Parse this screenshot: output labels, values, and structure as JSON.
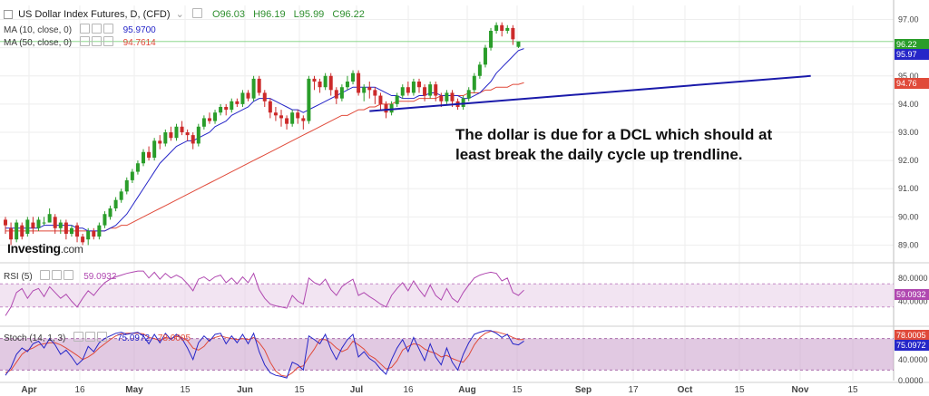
{
  "chart_title": "US Dollar Index Futures, D, (CFD)",
  "ohlc": {
    "O": "O96.03",
    "H": "H96.19",
    "L": "L95.99",
    "C": "C96.22"
  },
  "ma10": {
    "label": "MA (10, close, 0)",
    "value": "95.9700"
  },
  "ma50": {
    "label": "MA (50, close, 0)",
    "value": "94.7614"
  },
  "rsi": {
    "label": "RSI (5)",
    "value": "59.0932"
  },
  "stoch": {
    "label": "Stoch (14, 1, 3)",
    "k": "75.0972",
    "d": "78.0005"
  },
  "annotation": [
    "The dollar is due for a DCL which should at",
    "least break the daily cycle up trendline."
  ],
  "logo": {
    "brand": "Investing",
    "suffix": ".com"
  },
  "price_tags": {
    "close": "96.22",
    "ma10": "95.97",
    "ma50": "94.76"
  },
  "rsi_tag": "59.0932",
  "stoch_tags": {
    "d": "78.0005",
    "k": "75.0972"
  },
  "colors": {
    "up": "#2a9d2a",
    "down": "#cc2a2a",
    "ma10": "#2626c8",
    "ma50": "#e04a3a",
    "rsi": "#b048b0",
    "band": "#e9d2ea",
    "trendline": "#1a1aaa"
  },
  "chart_data": {
    "type": "candlestick",
    "x_ticks": [
      "Apr",
      "16",
      "May",
      "15",
      "Jun",
      "15",
      "Jul",
      "16",
      "Aug",
      "15",
      "Sep",
      "17",
      "Oct",
      "15",
      "Nov",
      "15"
    ],
    "y_ticks": [
      "97.00",
      "96.00",
      "95.00",
      "94.00",
      "93.00",
      "92.00",
      "91.00",
      "90.00",
      "89.00"
    ],
    "y_range": [
      88.5,
      97.5
    ],
    "candles": [
      [
        89.9,
        89.7,
        90.0,
        89.4
      ],
      [
        89.6,
        89.2,
        89.8,
        89.0
      ],
      [
        89.2,
        89.8,
        89.9,
        89.1
      ],
      [
        89.7,
        89.3,
        89.8,
        89.2
      ],
      [
        89.4,
        89.9,
        90.0,
        89.3
      ],
      [
        89.8,
        89.6,
        90.0,
        89.4
      ],
      [
        89.6,
        89.9,
        90.0,
        89.5
      ],
      [
        89.8,
        89.8,
        90.0,
        89.7
      ],
      [
        89.8,
        90.1,
        90.3,
        89.8
      ],
      [
        90.0,
        89.6,
        90.1,
        89.4
      ],
      [
        89.6,
        89.8,
        89.9,
        89.4
      ],
      [
        89.8,
        89.4,
        89.9,
        89.2
      ],
      [
        89.4,
        89.6,
        89.7,
        89.3
      ],
      [
        89.7,
        89.3,
        89.8,
        89.1
      ],
      [
        89.3,
        89.1,
        89.4,
        89.0
      ],
      [
        89.2,
        89.5,
        89.6,
        89.0
      ],
      [
        89.5,
        89.3,
        89.6,
        89.2
      ],
      [
        89.3,
        89.7,
        89.8,
        89.2
      ],
      [
        89.7,
        90.1,
        90.2,
        89.6
      ],
      [
        90.0,
        90.3,
        90.4,
        89.9
      ],
      [
        90.3,
        90.6,
        90.7,
        90.2
      ],
      [
        90.6,
        90.9,
        91.0,
        90.5
      ],
      [
        90.9,
        91.3,
        91.4,
        90.8
      ],
      [
        91.3,
        91.6,
        91.7,
        91.2
      ],
      [
        91.6,
        91.9,
        92.0,
        91.5
      ],
      [
        91.9,
        92.3,
        92.4,
        91.8
      ],
      [
        92.3,
        92.1,
        92.5,
        92.0
      ],
      [
        92.1,
        92.7,
        92.8,
        92.0
      ],
      [
        92.7,
        92.6,
        92.9,
        92.4
      ],
      [
        92.6,
        93.0,
        93.1,
        92.5
      ],
      [
        93.0,
        92.8,
        93.2,
        92.7
      ],
      [
        92.8,
        93.2,
        93.3,
        92.7
      ],
      [
        93.2,
        93.0,
        93.4,
        92.9
      ],
      [
        93.0,
        92.9,
        93.1,
        92.7
      ],
      [
        92.9,
        92.6,
        93.0,
        92.4
      ],
      [
        92.6,
        93.2,
        93.3,
        92.5
      ],
      [
        93.2,
        93.5,
        93.6,
        93.1
      ],
      [
        93.5,
        93.4,
        93.7,
        93.3
      ],
      [
        93.4,
        93.7,
        93.8,
        93.3
      ],
      [
        93.7,
        93.9,
        94.0,
        93.6
      ],
      [
        93.9,
        93.8,
        94.0,
        93.6
      ],
      [
        93.8,
        94.1,
        94.2,
        93.7
      ],
      [
        94.1,
        94.0,
        94.2,
        93.9
      ],
      [
        94.0,
        94.4,
        94.5,
        93.9
      ],
      [
        94.4,
        94.2,
        94.5,
        94.1
      ],
      [
        94.2,
        94.9,
        95.0,
        94.1
      ],
      [
        94.9,
        94.4,
        95.0,
        94.3
      ],
      [
        94.4,
        94.1,
        94.5,
        93.9
      ],
      [
        94.1,
        93.7,
        94.2,
        93.5
      ],
      [
        93.7,
        93.6,
        93.9,
        93.4
      ],
      [
        93.6,
        93.5,
        93.8,
        93.2
      ],
      [
        93.5,
        93.3,
        93.6,
        93.1
      ],
      [
        93.3,
        93.7,
        93.8,
        93.2
      ],
      [
        93.7,
        93.5,
        93.8,
        93.3
      ],
      [
        93.5,
        93.4,
        93.6,
        93.1
      ],
      [
        93.4,
        94.9,
        95.0,
        93.3
      ],
      [
        94.9,
        94.8,
        95.0,
        94.5
      ],
      [
        94.8,
        94.6,
        94.9,
        94.4
      ],
      [
        94.6,
        95.0,
        95.1,
        94.5
      ],
      [
        95.0,
        94.5,
        95.1,
        94.3
      ],
      [
        94.5,
        94.2,
        94.6,
        94.0
      ],
      [
        94.2,
        94.6,
        94.7,
        94.1
      ],
      [
        94.6,
        94.8,
        95.0,
        94.5
      ],
      [
        94.8,
        95.1,
        95.2,
        94.7
      ],
      [
        95.1,
        94.4,
        95.2,
        94.3
      ],
      [
        94.4,
        94.6,
        94.7,
        94.1
      ],
      [
        94.6,
        94.5,
        94.8,
        94.2
      ],
      [
        94.5,
        94.3,
        94.6,
        94.0
      ],
      [
        94.3,
        94.0,
        94.4,
        93.8
      ],
      [
        94.0,
        93.7,
        94.1,
        93.5
      ],
      [
        93.7,
        94.0,
        94.1,
        93.6
      ],
      [
        94.0,
        94.3,
        94.4,
        93.9
      ],
      [
        94.3,
        94.6,
        94.7,
        94.2
      ],
      [
        94.6,
        94.4,
        94.8,
        94.3
      ],
      [
        94.4,
        94.8,
        94.9,
        94.3
      ],
      [
        94.8,
        94.6,
        94.9,
        94.4
      ],
      [
        94.6,
        94.3,
        94.7,
        94.1
      ],
      [
        94.3,
        94.7,
        94.8,
        94.2
      ],
      [
        94.7,
        94.3,
        94.8,
        94.1
      ],
      [
        94.3,
        94.1,
        94.4,
        93.9
      ],
      [
        94.1,
        94.4,
        94.5,
        94.0
      ],
      [
        94.4,
        94.1,
        94.5,
        93.9
      ],
      [
        94.1,
        93.9,
        94.2,
        93.8
      ],
      [
        93.9,
        94.2,
        94.3,
        93.8
      ],
      [
        94.2,
        94.5,
        94.6,
        94.1
      ],
      [
        94.5,
        95.0,
        95.1,
        94.4
      ],
      [
        95.0,
        95.4,
        95.5,
        94.9
      ],
      [
        95.4,
        96.0,
        96.1,
        95.3
      ],
      [
        96.0,
        96.6,
        96.7,
        95.9
      ],
      [
        96.6,
        96.8,
        96.9,
        96.5
      ],
      [
        96.8,
        96.6,
        96.9,
        96.4
      ],
      [
        96.6,
        96.7,
        96.8,
        96.5
      ],
      [
        96.7,
        96.3,
        96.8,
        96.1
      ],
      [
        96.03,
        96.22,
        96.19,
        95.99
      ]
    ],
    "ma10": [
      89.6,
      89.6,
      89.6,
      89.6,
      89.6,
      89.6,
      89.6,
      89.7,
      89.7,
      89.7,
      89.7,
      89.7,
      89.7,
      89.6,
      89.6,
      89.5,
      89.5,
      89.5,
      89.5,
      89.6,
      89.7,
      89.9,
      90.1,
      90.4,
      90.7,
      91.0,
      91.3,
      91.6,
      91.9,
      92.1,
      92.3,
      92.5,
      92.6,
      92.7,
      92.7,
      92.8,
      92.9,
      93.0,
      93.2,
      93.3,
      93.4,
      93.6,
      93.7,
      93.8,
      93.9,
      94.1,
      94.2,
      94.2,
      94.2,
      94.1,
      94.0,
      93.9,
      93.8,
      93.8,
      93.7,
      93.8,
      93.9,
      94.0,
      94.1,
      94.2,
      94.3,
      94.4,
      94.5,
      94.6,
      94.6,
      94.6,
      94.6,
      94.6,
      94.5,
      94.4,
      94.3,
      94.3,
      94.2,
      94.2,
      94.2,
      94.3,
      94.3,
      94.4,
      94.4,
      94.3,
      94.3,
      94.3,
      94.3,
      94.2,
      94.2,
      94.3,
      94.4,
      94.6,
      94.8,
      95.1,
      95.3,
      95.5,
      95.7,
      95.9,
      95.97
    ],
    "ma50": [
      89.5,
      89.5,
      89.5,
      89.5,
      89.5,
      89.5,
      89.5,
      89.5,
      89.5,
      89.5,
      89.5,
      89.5,
      89.5,
      89.5,
      89.5,
      89.5,
      89.5,
      89.5,
      89.5,
      89.6,
      89.6,
      89.7,
      89.7,
      89.8,
      89.9,
      90.0,
      90.1,
      90.2,
      90.3,
      90.4,
      90.5,
      90.6,
      90.7,
      90.8,
      90.9,
      91.0,
      91.1,
      91.2,
      91.3,
      91.4,
      91.5,
      91.6,
      91.7,
      91.8,
      91.9,
      92.0,
      92.1,
      92.2,
      92.3,
      92.4,
      92.5,
      92.6,
      92.7,
      92.8,
      92.9,
      93.0,
      93.1,
      93.2,
      93.3,
      93.4,
      93.5,
      93.6,
      93.6,
      93.7,
      93.8,
      93.8,
      93.9,
      93.9,
      94.0,
      94.0,
      94.0,
      94.1,
      94.1,
      94.1,
      94.1,
      94.2,
      94.2,
      94.2,
      94.2,
      94.3,
      94.3,
      94.3,
      94.3,
      94.3,
      94.4,
      94.4,
      94.4,
      94.5,
      94.5,
      94.6,
      94.6,
      94.6,
      94.7,
      94.7,
      94.76
    ],
    "trendline": [
      [
        66,
        93.75
      ],
      [
        146,
        95.0
      ]
    ],
    "rsi": {
      "range": [
        0,
        100
      ],
      "y_ticks": [
        "80.0000",
        "40.0000"
      ],
      "band": [
        30,
        70
      ],
      "values": [
        15,
        30,
        55,
        62,
        45,
        58,
        62,
        48,
        65,
        55,
        45,
        52,
        40,
        30,
        45,
        58,
        50,
        62,
        72,
        78,
        82,
        85,
        88,
        90,
        92,
        92,
        80,
        90,
        78,
        88,
        80,
        85,
        80,
        70,
        58,
        78,
        82,
        75,
        82,
        85,
        72,
        80,
        70,
        82,
        72,
        88,
        60,
        45,
        35,
        32,
        30,
        28,
        50,
        40,
        35,
        80,
        72,
        68,
        78,
        60,
        50,
        65,
        72,
        78,
        50,
        55,
        48,
        42,
        35,
        30,
        50,
        62,
        72,
        58,
        75,
        60,
        48,
        68,
        50,
        42,
        62,
        45,
        38,
        55,
        68,
        80,
        85,
        88,
        90,
        88,
        75,
        80,
        55,
        50,
        59.09
      ]
    },
    "stoch": {
      "range": [
        0,
        100
      ],
      "y_ticks": [
        "80.0000",
        "40.0000",
        "0.0000"
      ],
      "band": [
        20,
        80
      ],
      "k": [
        10,
        25,
        50,
        62,
        55,
        70,
        75,
        62,
        80,
        68,
        50,
        58,
        45,
        30,
        40,
        65,
        55,
        72,
        80,
        85,
        90,
        92,
        88,
        90,
        92,
        85,
        70,
        88,
        72,
        90,
        78,
        88,
        80,
        62,
        40,
        72,
        85,
        75,
        88,
        90,
        70,
        85,
        72,
        88,
        70,
        90,
        55,
        30,
        15,
        10,
        8,
        5,
        35,
        30,
        20,
        85,
        78,
        70,
        88,
        60,
        40,
        62,
        78,
        88,
        45,
        55,
        42,
        35,
        22,
        12,
        40,
        62,
        78,
        55,
        82,
        60,
        38,
        70,
        45,
        30,
        62,
        35,
        20,
        50,
        72,
        88,
        92,
        95,
        95,
        90,
        82,
        88,
        70,
        68,
        75.1
      ],
      "d": [
        15,
        20,
        35,
        50,
        58,
        62,
        68,
        70,
        72,
        72,
        68,
        62,
        55,
        48,
        40,
        45,
        52,
        62,
        70,
        78,
        85,
        89,
        90,
        90,
        90,
        89,
        82,
        80,
        76,
        82,
        80,
        84,
        82,
        76,
        62,
        58,
        65,
        78,
        82,
        85,
        82,
        80,
        78,
        80,
        78,
        82,
        72,
        58,
        35,
        18,
        10,
        8,
        15,
        25,
        28,
        45,
        60,
        78,
        78,
        72,
        62,
        55,
        60,
        75,
        68,
        60,
        48,
        42,
        32,
        22,
        25,
        38,
        58,
        65,
        70,
        68,
        60,
        55,
        52,
        45,
        48,
        42,
        38,
        35,
        48,
        68,
        82,
        90,
        94,
        93,
        90,
        87,
        82,
        78,
        78.0
      ]
    }
  }
}
